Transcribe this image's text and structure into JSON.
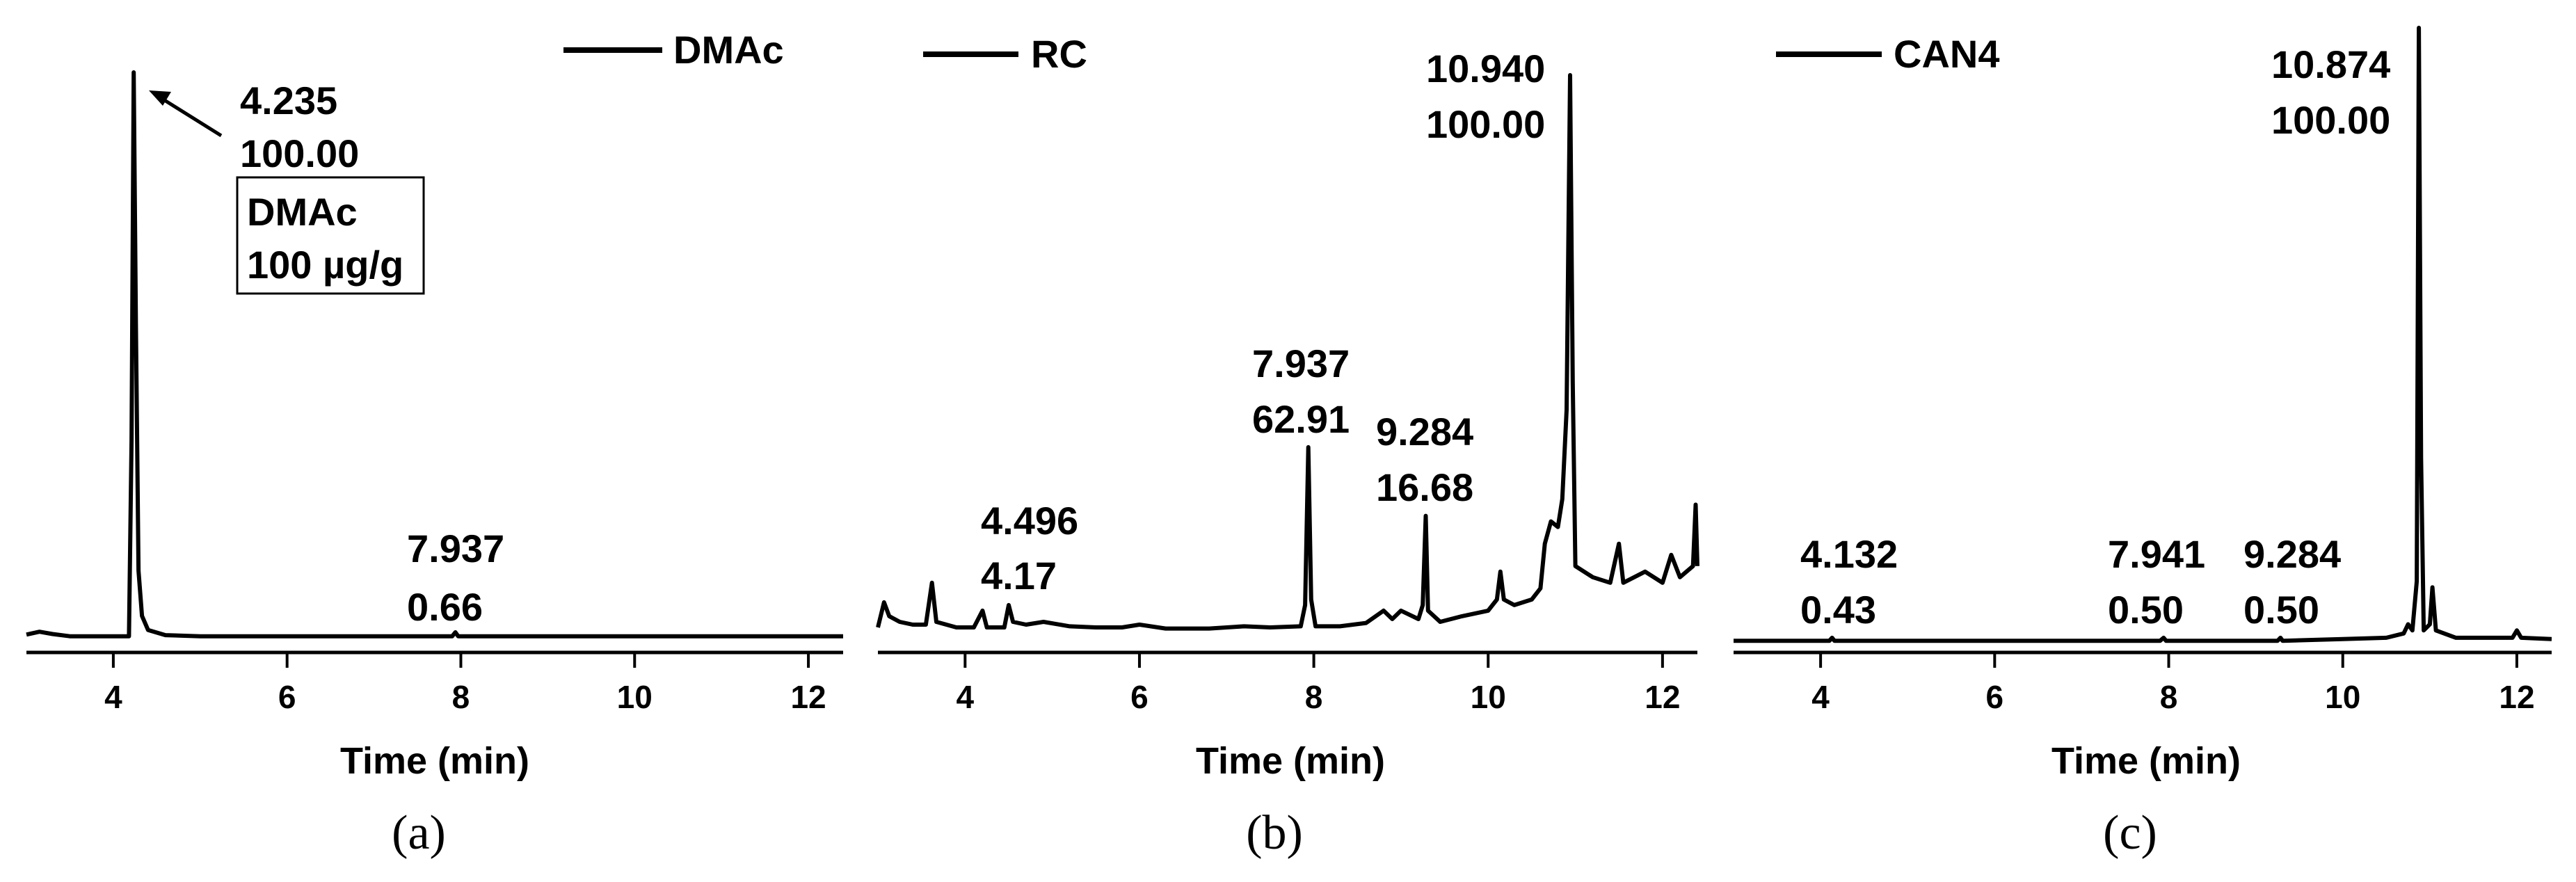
{
  "chart_data": [
    {
      "type": "line",
      "panel_label": "(a)",
      "xlabel": "Time (min)",
      "ylabel": "",
      "xlim": [
        3.0,
        12.4
      ],
      "xticks": [
        4,
        6,
        8,
        10,
        12
      ],
      "legend": {
        "label": "DMAc",
        "placement": "top-right"
      },
      "series": [
        {
          "name": "DMAc",
          "points": [
            [
              3.0,
              0.007
            ],
            [
              3.15,
              0.012
            ],
            [
              3.3,
              0.008
            ],
            [
              3.5,
              0.004
            ],
            [
              4.0,
              0.004
            ],
            [
              4.18,
              0.004
            ],
            [
              4.21,
              0.35
            ],
            [
              4.235,
              1.0
            ],
            [
              4.26,
              0.55
            ],
            [
              4.29,
              0.12
            ],
            [
              4.33,
              0.04
            ],
            [
              4.4,
              0.015
            ],
            [
              4.6,
              0.006
            ],
            [
              5.0,
              0.004
            ],
            [
              7.9,
              0.004
            ],
            [
              7.937,
              0.011
            ],
            [
              7.97,
              0.004
            ],
            [
              12.4,
              0.004
            ]
          ]
        }
      ],
      "peaks": [
        {
          "time": "4.235",
          "area": "100.00"
        },
        {
          "time": "7.937",
          "area": "0.66"
        }
      ],
      "annotation_box": {
        "line1": "DMAc",
        "line2": "100 µg/g"
      }
    },
    {
      "type": "line",
      "panel_label": "(b)",
      "xlabel": "Time (min)",
      "ylabel": "",
      "xlim": [
        3.0,
        12.4
      ],
      "xticks": [
        4,
        6,
        8,
        10,
        12
      ],
      "legend": {
        "label": "RC",
        "placement": "top-left"
      },
      "series": [
        {
          "name": "RC",
          "points": [
            [
              3.0,
              0.01
            ],
            [
              3.07,
              0.055
            ],
            [
              3.13,
              0.03
            ],
            [
              3.25,
              0.02
            ],
            [
              3.4,
              0.015
            ],
            [
              3.55,
              0.015
            ],
            [
              3.62,
              0.09
            ],
            [
              3.67,
              0.02
            ],
            [
              3.9,
              0.01
            ],
            [
              4.1,
              0.01
            ],
            [
              4.2,
              0.04
            ],
            [
              4.25,
              0.01
            ],
            [
              4.45,
              0.01
            ],
            [
              4.5,
              0.05
            ],
            [
              4.55,
              0.02
            ],
            [
              4.7,
              0.015
            ],
            [
              4.9,
              0.02
            ],
            [
              5.2,
              0.012
            ],
            [
              5.5,
              0.01
            ],
            [
              5.8,
              0.01
            ],
            [
              6.0,
              0.015
            ],
            [
              6.3,
              0.008
            ],
            [
              6.8,
              0.008
            ],
            [
              7.2,
              0.012
            ],
            [
              7.5,
              0.01
            ],
            [
              7.85,
              0.012
            ],
            [
              7.9,
              0.05
            ],
            [
              7.937,
              0.333
            ],
            [
              7.97,
              0.06
            ],
            [
              8.02,
              0.012
            ],
            [
              8.3,
              0.012
            ],
            [
              8.6,
              0.018
            ],
            [
              8.8,
              0.04
            ],
            [
              8.9,
              0.025
            ],
            [
              9.0,
              0.04
            ],
            [
              9.2,
              0.025
            ],
            [
              9.25,
              0.05
            ],
            [
              9.284,
              0.21
            ],
            [
              9.31,
              0.04
            ],
            [
              9.45,
              0.02
            ],
            [
              9.7,
              0.03
            ],
            [
              10.0,
              0.04
            ],
            [
              10.1,
              0.06
            ],
            [
              10.14,
              0.11
            ],
            [
              10.18,
              0.06
            ],
            [
              10.3,
              0.05
            ],
            [
              10.5,
              0.06
            ],
            [
              10.6,
              0.08
            ],
            [
              10.65,
              0.16
            ],
            [
              10.72,
              0.2
            ],
            [
              10.8,
              0.19
            ],
            [
              10.85,
              0.24
            ],
            [
              10.9,
              0.4
            ],
            [
              10.94,
              1.0
            ],
            [
              10.97,
              0.45
            ],
            [
              11.0,
              0.12
            ],
            [
              11.2,
              0.1
            ],
            [
              11.4,
              0.09
            ],
            [
              11.5,
              0.16
            ],
            [
              11.55,
              0.09
            ],
            [
              11.8,
              0.11
            ],
            [
              12.0,
              0.09
            ],
            [
              12.1,
              0.14
            ],
            [
              12.2,
              0.1
            ],
            [
              12.35,
              0.12
            ],
            [
              12.38,
              0.23
            ],
            [
              12.4,
              0.12
            ]
          ]
        }
      ],
      "peaks": [
        {
          "time": "4.496",
          "area": "4.17"
        },
        {
          "time": "7.937",
          "area": "62.91"
        },
        {
          "time": "9.284",
          "area": "16.68"
        },
        {
          "time": "10.940",
          "area": "100.00"
        }
      ]
    },
    {
      "type": "line",
      "panel_label": "(c)",
      "xlabel": "Time (min)",
      "ylabel": "",
      "xlim": [
        3.0,
        12.4
      ],
      "xticks": [
        4,
        6,
        8,
        10,
        12
      ],
      "legend": {
        "label": "CAN4",
        "placement": "top-left"
      },
      "series": [
        {
          "name": "CAN4",
          "points": [
            [
              3.0,
              0.003
            ],
            [
              4.1,
              0.003
            ],
            [
              4.132,
              0.008
            ],
            [
              4.16,
              0.003
            ],
            [
              7.9,
              0.003
            ],
            [
              7.941,
              0.008
            ],
            [
              7.97,
              0.003
            ],
            [
              9.25,
              0.003
            ],
            [
              9.284,
              0.008
            ],
            [
              9.31,
              0.003
            ],
            [
              10.0,
              0.006
            ],
            [
              10.5,
              0.008
            ],
            [
              10.7,
              0.015
            ],
            [
              10.75,
              0.03
            ],
            [
              10.8,
              0.02
            ],
            [
              10.85,
              0.1
            ],
            [
              10.874,
              1.0
            ],
            [
              10.9,
              0.3
            ],
            [
              10.93,
              0.02
            ],
            [
              11.0,
              0.03
            ],
            [
              11.03,
              0.09
            ],
            [
              11.07,
              0.02
            ],
            [
              11.3,
              0.008
            ],
            [
              11.95,
              0.008
            ],
            [
              12.0,
              0.02
            ],
            [
              12.05,
              0.008
            ],
            [
              12.4,
              0.006
            ]
          ]
        }
      ],
      "peaks": [
        {
          "time": "4.132",
          "area": "0.43"
        },
        {
          "time": "7.941",
          "area": "0.50"
        },
        {
          "time": "9.284",
          "area": "0.50"
        },
        {
          "time": "10.874",
          "area": "100.00"
        }
      ]
    }
  ]
}
